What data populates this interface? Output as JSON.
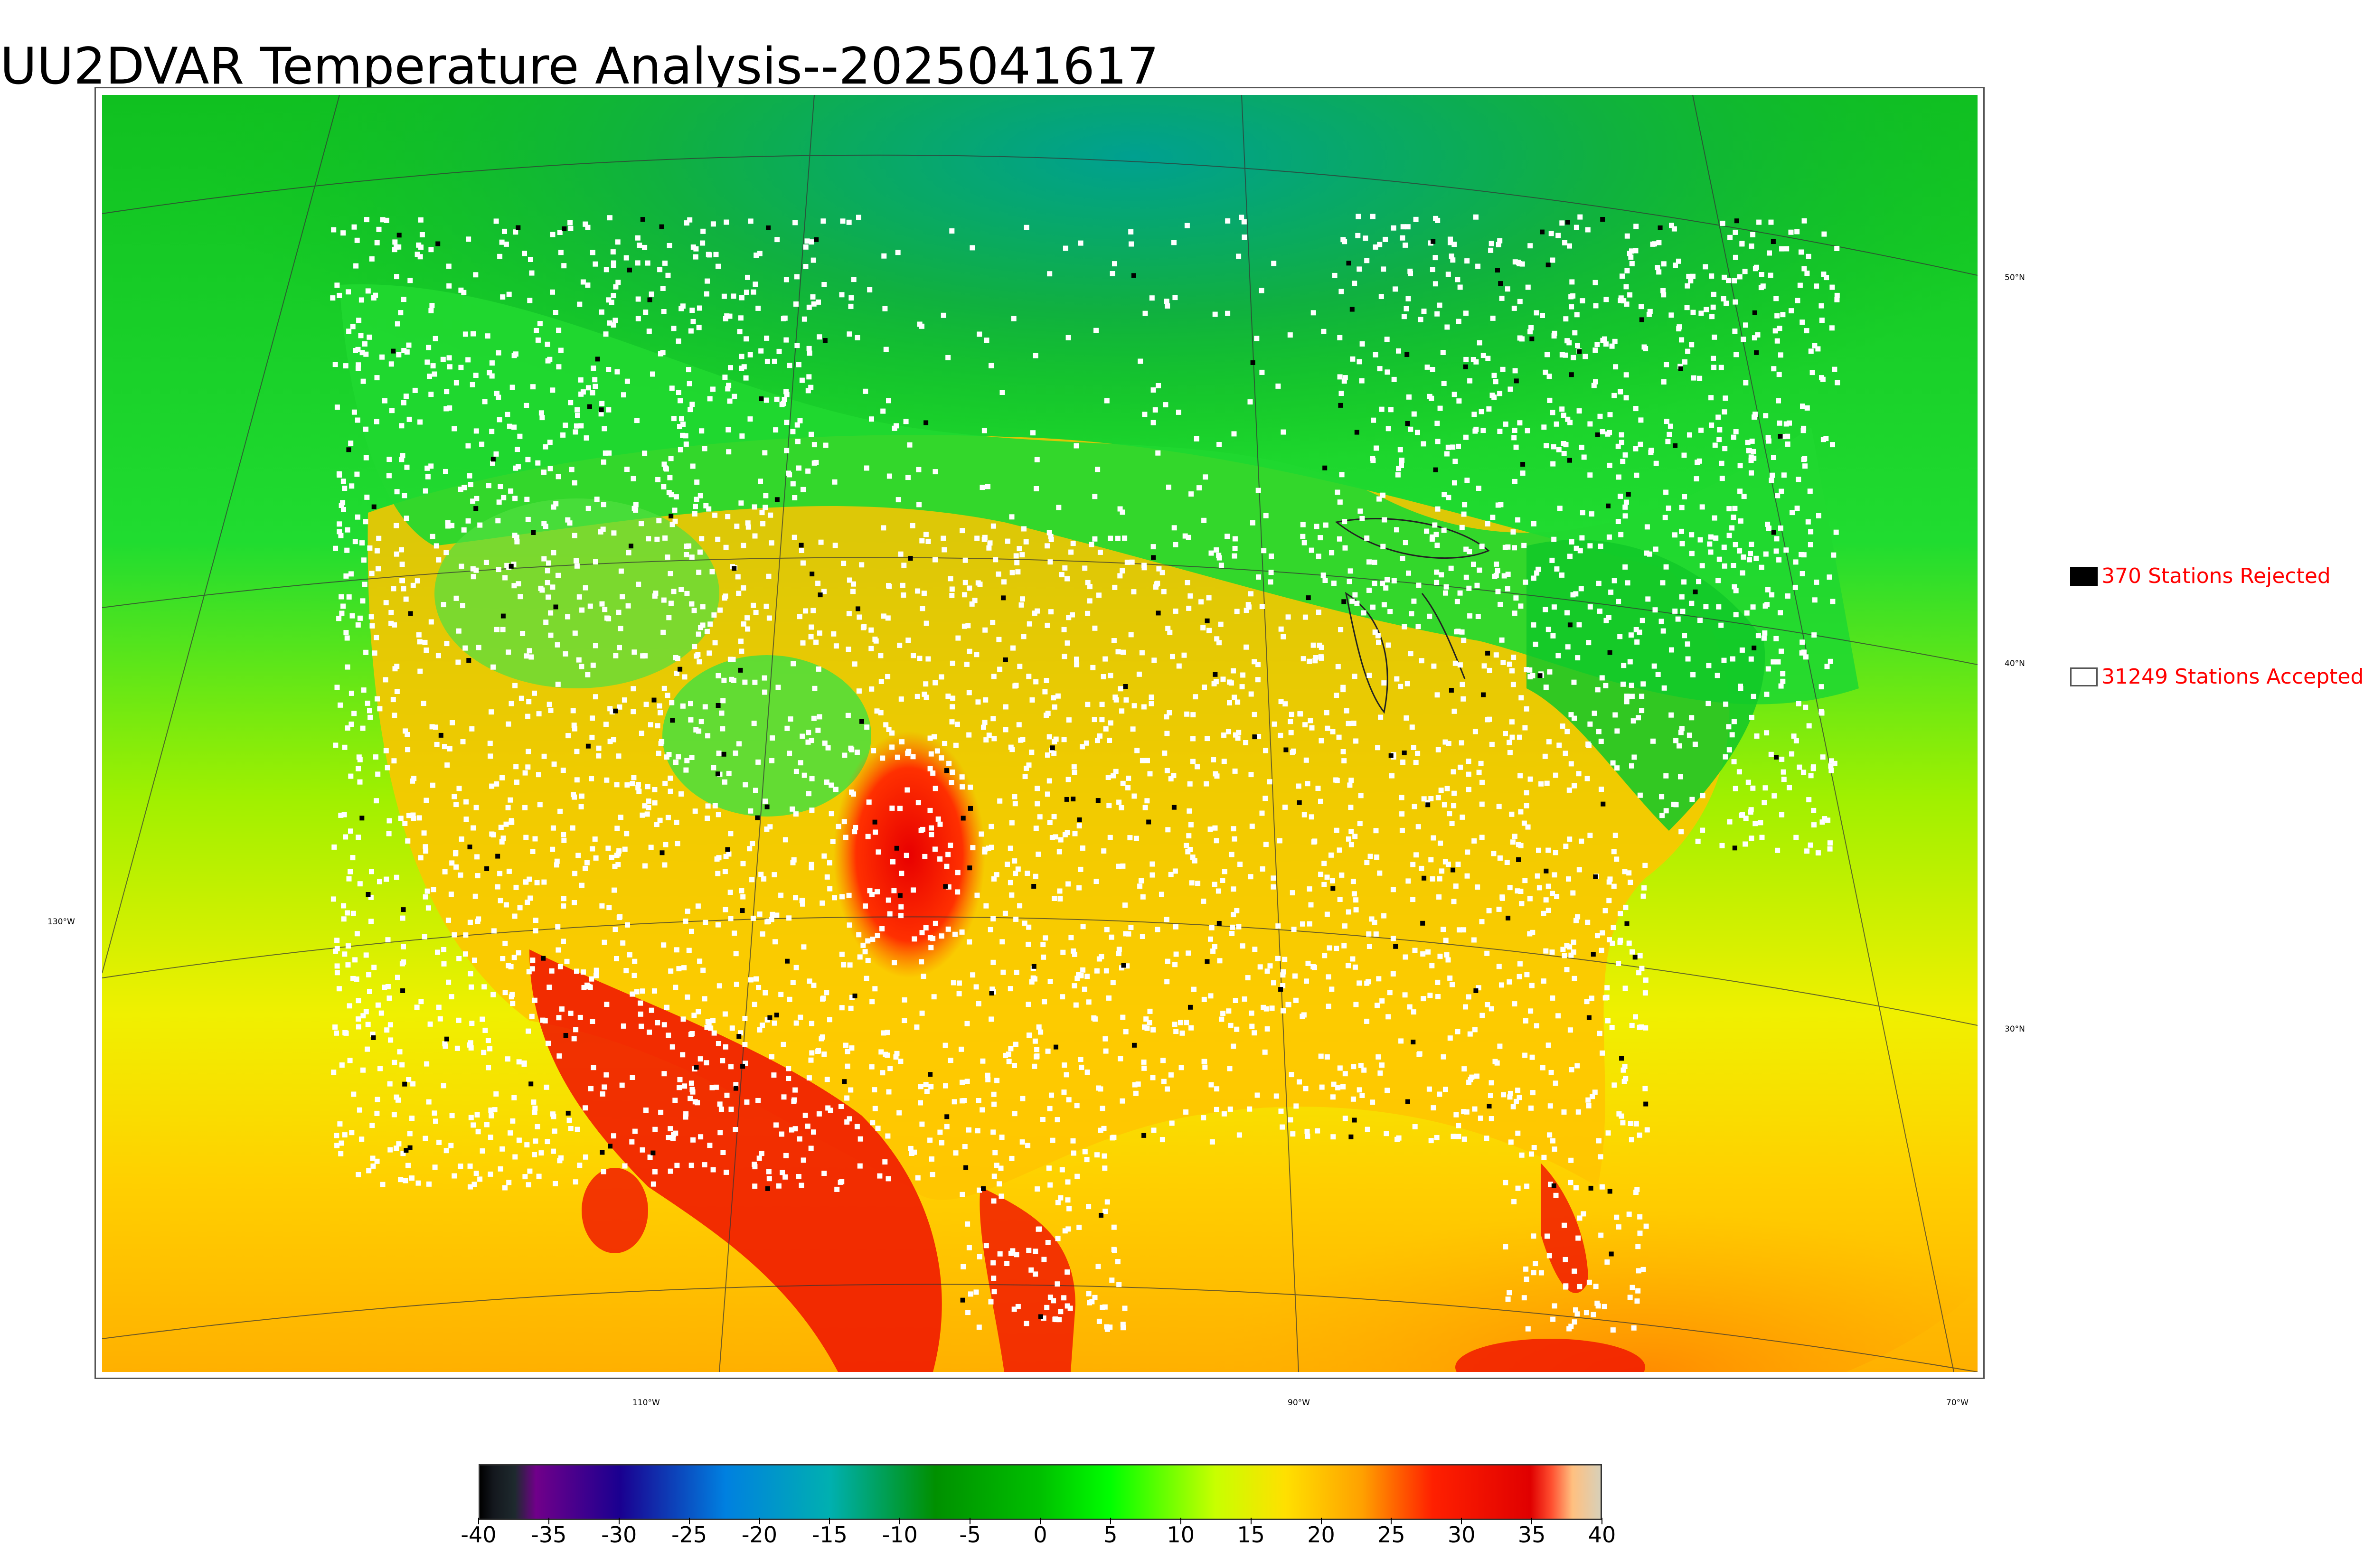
{
  "title": "UU2DVAR Temperature Analysis--2025041617",
  "legend": {
    "rejected_label": "370 Stations Rejected",
    "accepted_label": "31249 Stations Accepted",
    "rejected_color": "#000000",
    "accepted_color": "#ffffff",
    "text_color": "#ff0000"
  },
  "map": {
    "lat_labels": [
      "50°N",
      "40°N",
      "30°N"
    ],
    "lon_labels": [
      "130°W",
      "110°W",
      "90°W",
      "70°W"
    ],
    "region": "Contiguous United States and surroundings",
    "field": "temperature"
  },
  "colorbar": {
    "ticks": [
      "-40",
      "-35",
      "-30",
      "-25",
      "-20",
      "-15",
      "-10",
      "-5",
      "0",
      "5",
      "10",
      "15",
      "20",
      "25",
      "30",
      "35",
      "40"
    ],
    "stops": [
      {
        "v": -40,
        "c": "#000000"
      },
      {
        "v": -39,
        "c": "#14181e"
      },
      {
        "v": -37.5,
        "c": "#1e2a2e"
      },
      {
        "v": -36,
        "c": "#70008a"
      },
      {
        "v": -30,
        "c": "#1a0090"
      },
      {
        "v": -22.5,
        "c": "#0080e0"
      },
      {
        "v": -15,
        "c": "#00b0b0"
      },
      {
        "v": -7.5,
        "c": "#009000"
      },
      {
        "v": 0,
        "c": "#00c000"
      },
      {
        "v": 5,
        "c": "#00ff00"
      },
      {
        "v": 12.5,
        "c": "#c8ff00"
      },
      {
        "v": 17.5,
        "c": "#ffe000"
      },
      {
        "v": 23,
        "c": "#ffa000"
      },
      {
        "v": 28,
        "c": "#ff2000"
      },
      {
        "v": 35,
        "c": "#e00000"
      },
      {
        "v": 36.5,
        "c": "#ff5030"
      },
      {
        "v": 38,
        "c": "#ffc080"
      },
      {
        "v": 40,
        "c": "#d8d0b8"
      }
    ]
  }
}
